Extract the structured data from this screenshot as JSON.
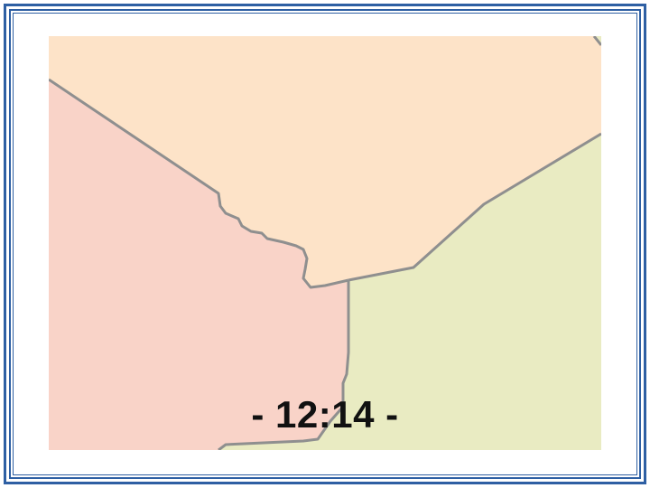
{
  "caption": "- 12:14 -",
  "colors": {
    "frame": "#2e5fa3",
    "region_north": "#fde3c8",
    "region_west": "#f9d3c8",
    "region_east": "#e9ebc2",
    "border_line": "#8f8f8f"
  }
}
